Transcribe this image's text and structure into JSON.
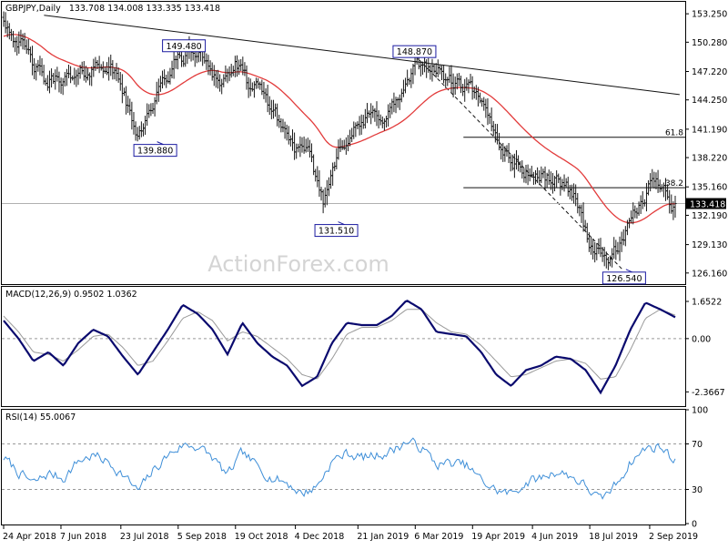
{
  "header": {
    "symbol": "GBPJPY,Daily",
    "ohlc": "133.708 134.008 133.335 133.418"
  },
  "watermark": "ActionForex.com",
  "colors": {
    "price_bars": "#1a1a1a",
    "moving_average": "#e23b3b",
    "macd_line": "#0a0a6e",
    "signal_line": "#9a9a9a",
    "rsi_line": "#3f8fd8",
    "label_box_border": "#1a1aa0"
  },
  "chart_data": [
    {
      "type": "candlestick",
      "panel": "price",
      "title": "GBPJPY,Daily",
      "ylim": [
        125.0,
        154.5
      ],
      "y_ticks": [
        "153.250",
        "150.280",
        "147.220",
        "144.250",
        "141.190",
        "138.220",
        "135.160",
        "133.418",
        "132.190",
        "129.130",
        "126.160"
      ],
      "last_price": "133.418",
      "x_ticks": [
        "24 Apr 2018",
        "7 Jun 2018",
        "23 Jul 2018",
        "5 Sep 2018",
        "19 Oct 2018",
        "4 Dec 2018",
        "21 Jan 2019",
        "6 Mar 2019",
        "19 Apr 2019",
        "4 Jun 2019",
        "18 Jul 2019",
        "2 Sep 2019"
      ],
      "x_dates": [
        "2018-04-24",
        "2018-06-07",
        "2018-07-23",
        "2018-09-05",
        "2018-10-19",
        "2018-12-04",
        "2019-01-21",
        "2019-03-06",
        "2019-04-19",
        "2019-06-04",
        "2019-07-18",
        "2019-09-02"
      ],
      "series": [
        {
          "role": "price",
          "x": [
            "2018-04-24",
            "2018-05-05",
            "2018-05-16",
            "2018-05-27",
            "2018-06-07",
            "2018-06-18",
            "2018-06-29",
            "2018-07-10",
            "2018-07-23",
            "2018-08-03",
            "2018-08-14",
            "2018-08-25",
            "2018-09-05",
            "2018-09-16",
            "2018-09-27",
            "2018-10-08",
            "2018-10-19",
            "2018-10-30",
            "2018-11-10",
            "2018-11-21",
            "2018-12-04",
            "2018-12-15",
            "2018-12-26",
            "2019-01-07",
            "2019-01-21",
            "2019-02-01",
            "2019-02-12",
            "2019-02-23",
            "2019-03-06",
            "2019-03-17",
            "2019-03-28",
            "2019-04-08",
            "2019-04-19",
            "2019-04-30",
            "2019-05-11",
            "2019-05-22",
            "2019-06-04",
            "2019-06-15",
            "2019-06-26",
            "2019-07-07",
            "2019-07-18",
            "2019-07-29",
            "2019-08-09",
            "2019-08-20",
            "2019-09-02",
            "2019-09-13",
            "2019-09-20"
          ],
          "y": [
            152.8,
            150.5,
            148.1,
            145.8,
            146.7,
            146.2,
            147.4,
            148.2,
            146.1,
            140.5,
            143.2,
            146.0,
            148.6,
            149.3,
            148.4,
            146.0,
            147.9,
            145.6,
            144.7,
            142.1,
            139.2,
            138.0,
            133.6,
            139.9,
            141.3,
            142.5,
            142.8,
            144.6,
            147.4,
            148.1,
            146.6,
            145.7,
            145.1,
            142.4,
            139.5,
            137.5,
            136.4,
            136.1,
            135.6,
            134.3,
            129.1,
            127.6,
            128.6,
            131.6,
            135.4,
            135.6,
            133.418
          ]
        },
        {
          "role": "moving_average",
          "y_start": 150.8,
          "y_min": 133.0,
          "y_end": 133.3
        }
      ],
      "annotations": [
        {
          "label": "149.480",
          "kind": "swing_high",
          "date": "2018-09-08",
          "value": 149.48
        },
        {
          "label": "139.880",
          "kind": "swing_low",
          "date": "2018-08-17",
          "value": 139.88
        },
        {
          "label": "131.510",
          "kind": "swing_low",
          "date": "2019-01-03",
          "value": 131.51
        },
        {
          "label": "148.870",
          "kind": "swing_high",
          "date": "2019-03-04",
          "value": 148.87
        },
        {
          "label": "126.540",
          "kind": "swing_low",
          "date": "2019-08-12",
          "value": 126.54
        }
      ],
      "lines": [
        {
          "kind": "trendline",
          "from": {
            "date": "2018-05-25",
            "value": 153.1
          },
          "to": {
            "date": "2019-09-25",
            "value": 144.8
          }
        },
        {
          "kind": "dashed_projection",
          "from": {
            "date": "2019-03-06",
            "value": 148.87
          },
          "to": {
            "date": "2019-08-12",
            "value": 126.54
          }
        },
        {
          "kind": "fibonacci",
          "label": "61.8",
          "value": 140.35,
          "from_date": "2019-04-12"
        },
        {
          "kind": "fibonacci",
          "label": "38.2",
          "value": 135.07,
          "from_date": "2019-04-12"
        },
        {
          "kind": "reference",
          "value": 133.418
        }
      ]
    },
    {
      "type": "line",
      "panel": "macd",
      "title": "MACD(12,26,9) 0.9502 1.0362",
      "ylim": [
        -3.0,
        2.3
      ],
      "y_ticks": [
        "1.6522",
        "0.00",
        "-2.3667"
      ],
      "series": [
        {
          "role": "macd",
          "values": [
            0.8,
            0.0,
            -1.0,
            -0.6,
            -1.2,
            -0.2,
            0.4,
            0.1,
            -0.8,
            -1.6,
            -0.6,
            0.4,
            1.5,
            1.1,
            0.4,
            -0.7,
            0.7,
            -0.2,
            -0.8,
            -1.2,
            -2.1,
            -1.7,
            -0.2,
            0.7,
            0.6,
            0.6,
            1.0,
            1.7,
            1.3,
            0.3,
            0.2,
            0.1,
            -0.6,
            -1.6,
            -2.1,
            -1.4,
            -1.2,
            -0.8,
            -0.9,
            -1.4,
            -2.4,
            -1.2,
            0.4,
            1.6,
            1.3,
            0.9502
          ]
        },
        {
          "role": "signal",
          "values": [
            1.0,
            0.3,
            -0.6,
            -0.7,
            -1.0,
            -0.5,
            0.1,
            0.2,
            -0.4,
            -1.2,
            -1.0,
            -0.1,
            0.9,
            1.2,
            0.8,
            -0.1,
            0.3,
            0.1,
            -0.4,
            -0.9,
            -1.6,
            -1.8,
            -0.9,
            0.2,
            0.5,
            0.5,
            0.8,
            1.3,
            1.3,
            0.7,
            0.3,
            0.2,
            -0.3,
            -1.0,
            -1.7,
            -1.6,
            -1.3,
            -1.0,
            -0.9,
            -1.1,
            -1.8,
            -1.7,
            -0.5,
            0.9,
            1.3,
            1.0362
          ]
        }
      ]
    },
    {
      "type": "line",
      "panel": "rsi",
      "title": "RSI(14) 55.0067",
      "ylim": [
        0,
        100
      ],
      "y_ticks": [
        "100",
        "70",
        "30",
        "0"
      ],
      "guides": [
        70,
        30
      ],
      "series": [
        {
          "role": "rsi",
          "values": [
            58,
            45,
            35,
            44,
            40,
            55,
            60,
            54,
            43,
            28,
            46,
            60,
            69,
            68,
            58,
            42,
            62,
            50,
            40,
            36,
            26,
            33,
            55,
            62,
            58,
            60,
            64,
            72,
            67,
            52,
            53,
            51,
            38,
            29,
            26,
            36,
            40,
            46,
            42,
            33,
            20,
            34,
            54,
            66,
            68,
            55
          ]
        }
      ]
    }
  ]
}
